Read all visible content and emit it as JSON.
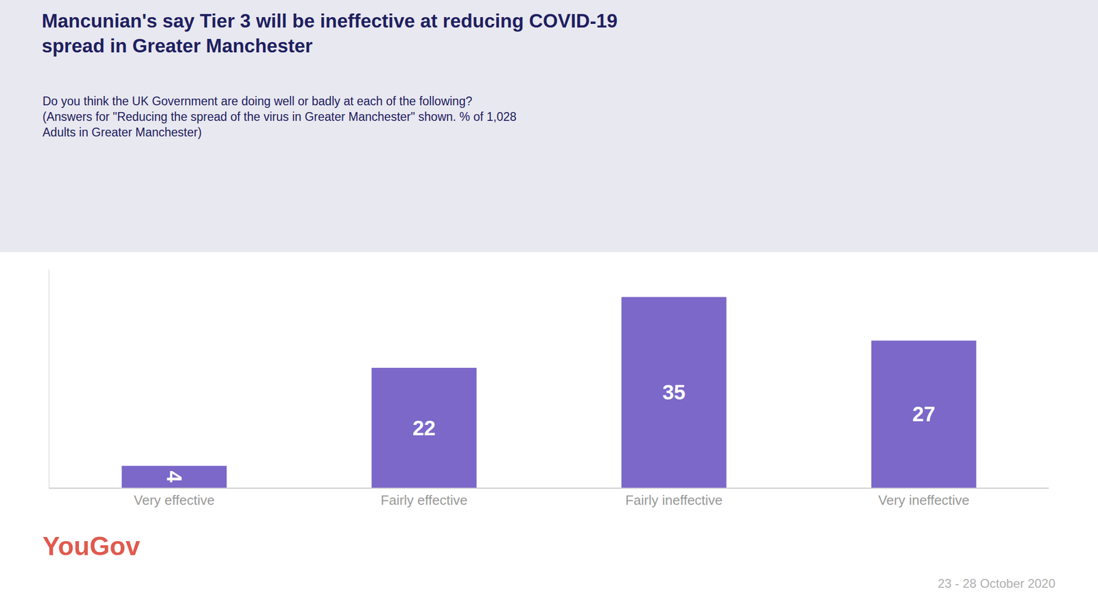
{
  "chart_data": {
    "type": "bar",
    "title": "Mancunian's say Tier 3 will be ineffective at reducing COVID-19\nspread in Greater Manchester",
    "subtitle": "Do you think the UK Government are doing well or badly at each of the following?\n(Answers for \"Reducing the spread of the virus in Greater Manchester\" shown. % of 1,028\nAdults in Greater Manchester)",
    "categories": [
      "Very effective",
      "Fairly effective",
      "Fairly ineffective",
      "Very ineffective"
    ],
    "values": [
      4,
      22,
      35,
      27
    ],
    "color": "#7B68C8",
    "ylim": [
      0,
      40
    ],
    "grid": false,
    "data_labels": true,
    "tick_labels": "x",
    "annotations": [
      {
        "text": "YouGov",
        "color": "#e05a4e"
      },
      {
        "text": "23 - 28 October 2020",
        "color": "#b0b0b0"
      }
    ]
  }
}
